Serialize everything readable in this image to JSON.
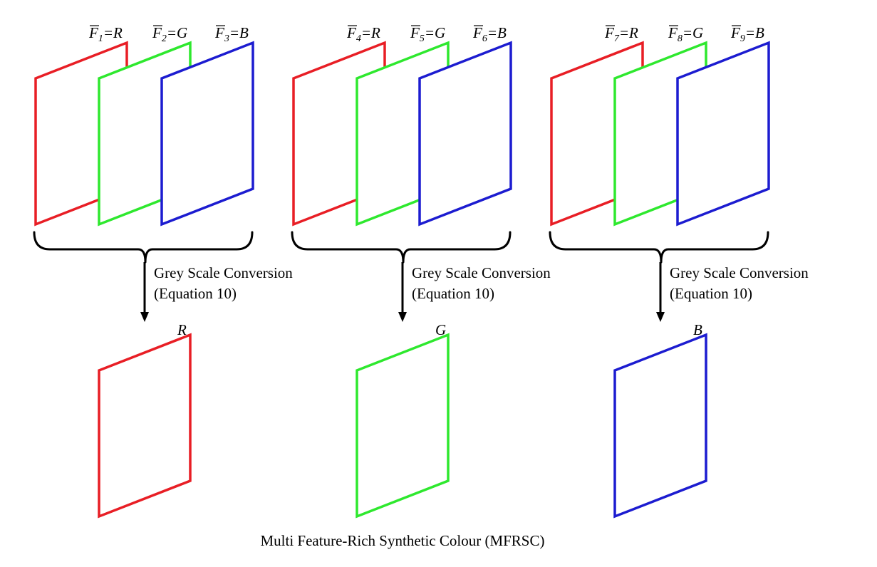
{
  "colors": {
    "R": "#e81e25",
    "G": "#2ee82e",
    "B": "#1c1cd0"
  },
  "groups": [
    {
      "features": [
        {
          "letter": "F",
          "sub": "1",
          "channel": "R",
          "color": "R"
        },
        {
          "letter": "F",
          "sub": "2",
          "channel": "G",
          "color": "G"
        },
        {
          "letter": "F",
          "sub": "3",
          "channel": "B",
          "color": "B"
        }
      ],
      "conversion_line1": "Grey Scale Conversion",
      "conversion_line2": "(Equation 10)",
      "output": {
        "label": "R",
        "color": "R"
      }
    },
    {
      "features": [
        {
          "letter": "F",
          "sub": "4",
          "channel": "R",
          "color": "R"
        },
        {
          "letter": "F",
          "sub": "5",
          "channel": "G",
          "color": "G"
        },
        {
          "letter": "F",
          "sub": "6",
          "channel": "B",
          "color": "B"
        }
      ],
      "conversion_line1": "Grey Scale Conversion",
      "conversion_line2": "(Equation 10)",
      "output": {
        "label": "G",
        "color": "G"
      }
    },
    {
      "features": [
        {
          "letter": "F",
          "sub": "7",
          "channel": "R",
          "color": "R"
        },
        {
          "letter": "F",
          "sub": "8",
          "channel": "G",
          "color": "G"
        },
        {
          "letter": "F",
          "sub": "9",
          "channel": "B",
          "color": "B"
        }
      ],
      "conversion_line1": "Grey Scale Conversion",
      "conversion_line2": "(Equation 10)",
      "output": {
        "label": "B",
        "color": "B"
      }
    }
  ],
  "caption": "Multi Feature-Rich Synthetic Colour (MFRSC)"
}
